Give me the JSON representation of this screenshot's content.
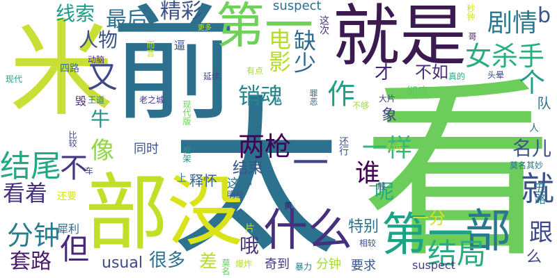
{
  "wordcloud": {
    "words": [
      {
        "text": "看",
        "color": "#6ccd5a"
      },
      {
        "text": "太",
        "color": "#2c728e"
      },
      {
        "text": "前",
        "color": "#2d708e"
      },
      {
        "text": "就是",
        "color": "#3b1a4f"
      },
      {
        "text": "第一",
        "color": "#6fd15a"
      },
      {
        "text": "米",
        "color": "#c9df35"
      },
      {
        "text": "部",
        "color": "#c0df29"
      },
      {
        "text": "没",
        "color": "#dae319"
      },
      {
        "text": "第一",
        "color": "#1aa384"
      },
      {
        "text": "部",
        "color": "#2a788e"
      },
      {
        "text": "什么",
        "color": "#472f7d"
      },
      {
        "text": "一",
        "color": "#414487"
      },
      {
        "text": "女杀手",
        "color": "#27ad81"
      },
      {
        "text": "结局",
        "color": "#27ad81"
      },
      {
        "text": "就",
        "color": "#3a538b"
      },
      {
        "text": "两枪",
        "color": "#440154"
      },
      {
        "text": "一样",
        "color": "#35b779"
      },
      {
        "text": "销魂",
        "color": "#25848e"
      },
      {
        "text": "缺少",
        "color": "#31688e"
      },
      {
        "text": "作",
        "color": "#1fa088"
      },
      {
        "text": "剧情",
        "color": "#2a788e"
      },
      {
        "text": "最后",
        "color": "#2c728e"
      },
      {
        "text": "精彩",
        "color": "#3b528b"
      },
      {
        "text": "线索",
        "color": "#1e9c89"
      },
      {
        "text": "人物",
        "color": "#3b528b"
      },
      {
        "text": "又",
        "color": "#3e4989"
      },
      {
        "text": "电影",
        "color": "#b5de2b"
      },
      {
        "text": "b",
        "color": "#3b528b"
      },
      {
        "text": "个",
        "color": "#1f9e89"
      },
      {
        "text": "结尾",
        "color": "#22a884"
      },
      {
        "text": "看着",
        "color": "#46327e"
      },
      {
        "text": "牛",
        "color": "#21918c"
      },
      {
        "text": "像",
        "color": "#90d743"
      },
      {
        "text": "谁",
        "color": "#440154"
      },
      {
        "text": "不",
        "color": "#453781"
      },
      {
        "text": "分钟",
        "color": "#287c8e"
      },
      {
        "text": "套路",
        "color": "#481a6c"
      },
      {
        "text": "但",
        "color": "#482878"
      },
      {
        "text": "很多",
        "color": "#2d708e"
      },
      {
        "text": "差",
        "color": "#b8de29"
      },
      {
        "text": "哦",
        "color": "#46337e"
      },
      {
        "text": "跟",
        "color": "#3e4a89"
      },
      {
        "text": "名儿",
        "color": "#3b528b"
      },
      {
        "text": "呢",
        "color": "#22a884"
      },
      {
        "text": "结束",
        "color": "#39568c"
      },
      {
        "text": "才",
        "color": "#482475"
      },
      {
        "text": "不如",
        "color": "#472c7a"
      },
      {
        "text": "特别",
        "color": "#2c728e"
      },
      {
        "text": "一分",
        "color": "#d8e219"
      },
      {
        "text": "象",
        "color": "#414487"
      },
      {
        "text": "usual",
        "color": "#3e4989"
      },
      {
        "text": "suspect",
        "color": "#2e6f8e"
      },
      {
        "text": "suspect",
        "color": "#433e85"
      },
      {
        "text": "同时",
        "color": "#3a548c"
      },
      {
        "text": "释怀",
        "color": "#34618d"
      },
      {
        "text": "这种",
        "color": "#2d708e"
      },
      {
        "text": "犀利",
        "color": "#31688e"
      },
      {
        "text": "奇到",
        "color": "#453882"
      },
      {
        "text": "分钟",
        "color": "#a5db36"
      },
      {
        "text": "要求",
        "color": "#3a548c"
      },
      {
        "text": "么",
        "color": "#3e4a89"
      },
      {
        "text": "五路",
        "color": "#2a768e"
      },
      {
        "text": "队",
        "color": "#2c718e"
      },
      {
        "text": "还要",
        "color": "#d5e21a"
      },
      {
        "text": "还行",
        "color": "#3b528b"
      },
      {
        "text": "四路",
        "color": "#2e6e8e"
      },
      {
        "text": "这次",
        "color": "#472f7d"
      },
      {
        "text": "逼",
        "color": "#3b518b"
      },
      {
        "text": "动脑",
        "color": "#482475"
      },
      {
        "text": "彻底",
        "color": "#5ec962"
      },
      {
        "text": "头晕",
        "color": "#3f4889"
      },
      {
        "text": "有点",
        "color": "#a8db34"
      },
      {
        "text": "大片",
        "color": "#453882"
      },
      {
        "text": "王道",
        "color": "#2a788e"
      },
      {
        "text": "毁",
        "color": "#482878"
      },
      {
        "text": "现代",
        "color": "#1fa188"
      },
      {
        "text": "延续",
        "color": "#3f4788"
      },
      {
        "text": "老之城",
        "color": "#443983"
      },
      {
        "text": "现代版",
        "color": "#6ece58"
      },
      {
        "text": "比较",
        "color": "#3e4989"
      },
      {
        "text": "框架",
        "color": "#1f9a8a"
      },
      {
        "text": "罪恶",
        "color": "#2d718e"
      },
      {
        "text": "不够",
        "color": "#a0da39"
      },
      {
        "text": "真的",
        "color": "#26ad81"
      },
      {
        "text": "秒钟",
        "color": "#d2e21b"
      },
      {
        "text": "哥",
        "color": "#482576"
      },
      {
        "text": "一般",
        "color": "#3d4d8a"
      },
      {
        "text": "动手",
        "color": "#a2da37"
      },
      {
        "text": "莫名其妙",
        "color": "#2b758e"
      },
      {
        "text": "人",
        "color": "#2c728e"
      },
      {
        "text": "明星",
        "color": "#39568c"
      },
      {
        "text": "上",
        "color": "#2a778e"
      },
      {
        "text": "车",
        "color": "#3e4a89"
      },
      {
        "text": "黄",
        "color": "#481567"
      },
      {
        "text": "片",
        "color": "#c2df23"
      },
      {
        "text": "莫名",
        "color": "#63cb5f"
      },
      {
        "text": "爆炸",
        "color": "#b4de2c"
      },
      {
        "text": "暴力",
        "color": "#2a788e"
      },
      {
        "text": "相较",
        "color": "#3b518b"
      },
      {
        "text": "更多",
        "color": "#c5e021"
      },
      {
        "text": "而言",
        "color": "#c0df25"
      }
    ]
  }
}
